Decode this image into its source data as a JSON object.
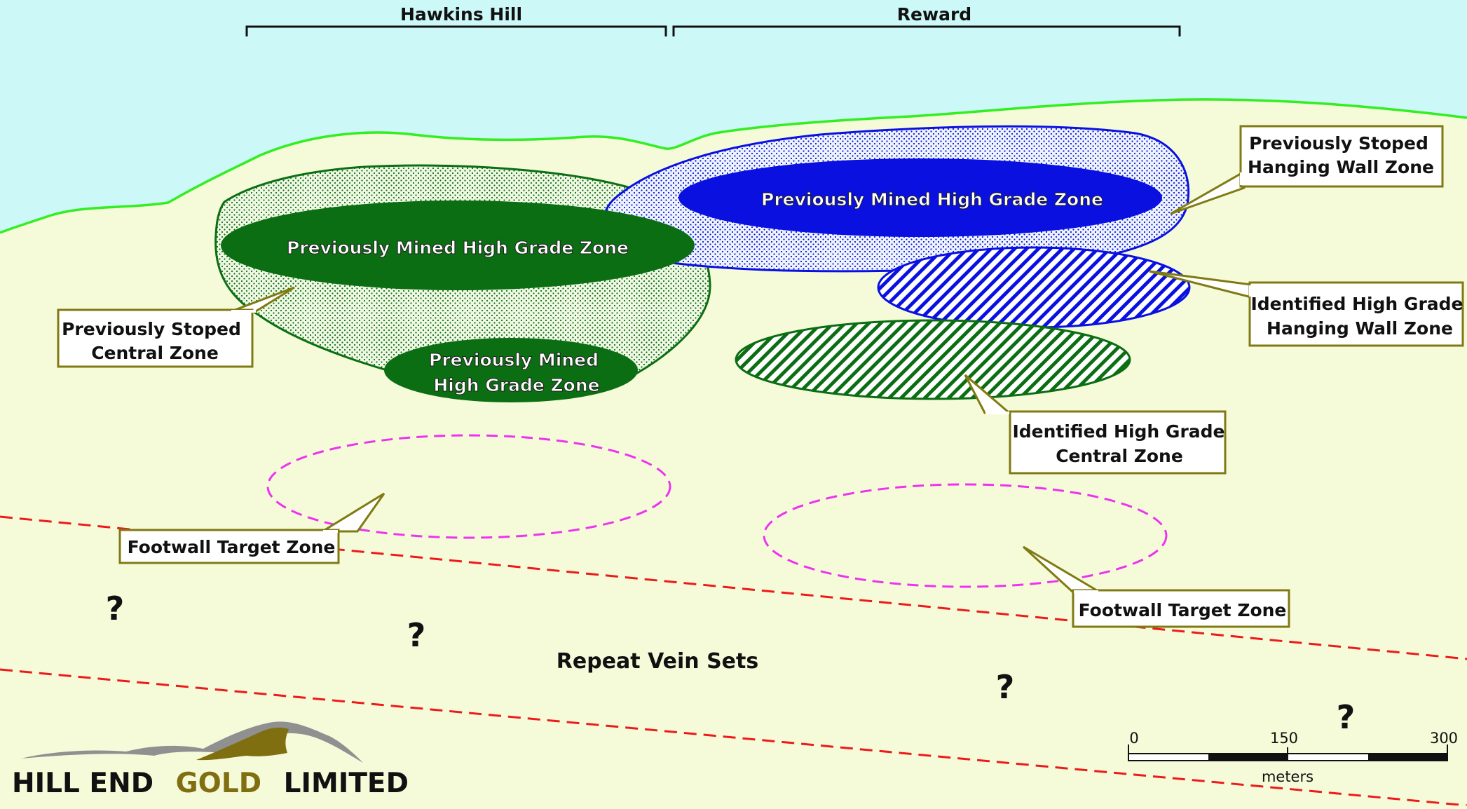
{
  "colors": {
    "sky": "#cdf8f8",
    "ground": "#f5fbd9",
    "surface_line": "#33ee22",
    "green_zone": "#0b6e12",
    "green_zone_light": "#5a9a3a",
    "blue_zone": "#0a10e0",
    "footwall_dash": "#ee33ee",
    "vein_dash": "#ee1a1a",
    "callout_border": "#7f7a12",
    "callout_fill": "#ffffff",
    "logo_gold": "#7f6f10",
    "logo_grey": "#909090"
  },
  "headers": {
    "left": "Hawkins Hill",
    "right": "Reward"
  },
  "zones": {
    "mined_left": "Previously Mined High Grade Zone",
    "mined_right": "Previously Mined High Grade Zone",
    "mined_small_line1": "Previously Mined",
    "mined_small_line2": "High Grade Zone"
  },
  "callouts": {
    "stoped_central": [
      "Previously Stoped",
      "Central Zone"
    ],
    "stoped_hanging": [
      "Previously Stoped",
      "Hanging Wall Zone"
    ],
    "identified_hanging": [
      "Identified High Grade",
      "Hanging Wall Zone"
    ],
    "identified_central": [
      "Identified High Grade",
      "Central Zone"
    ],
    "footwall_left": "Footwall Target Zone",
    "footwall_right": "Footwall Target Zone"
  },
  "repeat_vein_label": "Repeat Vein Sets",
  "question_mark": "?",
  "scale_bar": {
    "ticks": [
      "0",
      "150",
      "300"
    ],
    "unit": "meters"
  },
  "logo": {
    "word1": "HILL END",
    "word2": "GOLD",
    "word3": "LIMITED"
  }
}
